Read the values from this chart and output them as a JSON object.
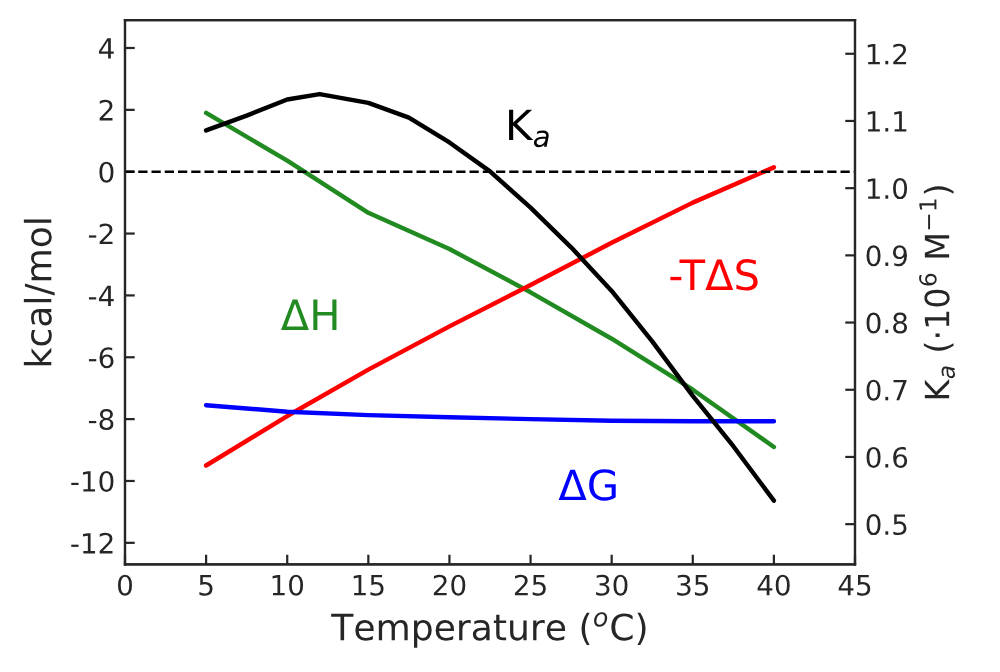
{
  "chart_data": {
    "type": "line",
    "xlabel": "Temperature ($^{o}$C)",
    "ylabel": "kcal/mol",
    "y2label": "K$_{a}$ (·10$^{6}$ M$^{−1}$)",
    "x": [
      5,
      10,
      15,
      20,
      25,
      30,
      35,
      40
    ],
    "series": [
      {
        "name": "ΔH",
        "color": "#218a21",
        "values": [
          1.9,
          0.36,
          -1.33,
          -2.5,
          -3.9,
          -5.4,
          -7.05,
          -8.9
        ]
      },
      {
        "name": "-TΔS",
        "color": "#ff0000",
        "values": [
          -9.5,
          -7.9,
          -6.4,
          -5.0,
          -3.66,
          -2.3,
          -1.0,
          0.14
        ]
      },
      {
        "name": "ΔG",
        "color": "#0000ff",
        "values": [
          -7.55,
          -7.76,
          -7.87,
          -7.94,
          -8.0,
          -8.05,
          -8.07,
          -8.07
        ]
      },
      {
        "name": "K$_{a}$",
        "color": "#000000",
        "axis": "y2",
        "x": [
          5,
          7.5,
          10,
          12,
          15,
          17.5,
          20,
          22.5,
          25,
          27.5,
          30,
          32.5,
          35,
          37.5,
          40
        ],
        "values": [
          1.086,
          1.108,
          1.132,
          1.14,
          1.127,
          1.105,
          1.068,
          1.025,
          0.971,
          0.912,
          0.847,
          0.772,
          0.691,
          0.616,
          0.535
        ]
      }
    ],
    "xlim": [
      0,
      45
    ],
    "xticks": [
      0,
      5,
      10,
      15,
      20,
      25,
      30,
      35,
      40,
      45
    ],
    "ylim": [
      -12.7,
      4.9
    ],
    "yticks": [
      -12,
      -10,
      -8,
      -6,
      -4,
      -2,
      0,
      2,
      4
    ],
    "y2lim": [
      0.44,
      1.25
    ],
    "y2ticks": [
      {
        "value": 0.5,
        "label": "0.5"
      },
      {
        "value": 0.6,
        "label": "0.6"
      },
      {
        "value": 0.7,
        "label": "0.7"
      },
      {
        "value": 0.8,
        "label": "0.8"
      },
      {
        "value": 0.9,
        "label": "0.9"
      },
      {
        "value": 1.0,
        "label": "1.0"
      },
      {
        "value": 1.1,
        "label": "1.1"
      },
      {
        "value": 1.2,
        "label": "1.2"
      }
    ],
    "ref_lines": [
      {
        "axis": "y",
        "value": 0,
        "color": "#000000",
        "line_style": "dashed"
      }
    ],
    "grid": false,
    "legend": false,
    "marker": "none",
    "line_style": "solid"
  }
}
